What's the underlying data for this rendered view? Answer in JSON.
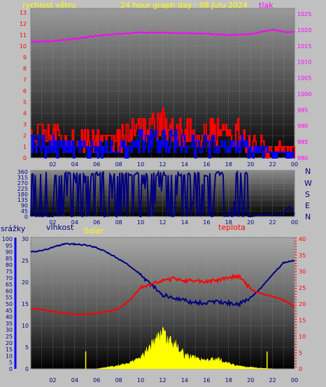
{
  "header": {
    "left_label": "rychlost větru",
    "title": "24 hour graph day : 08 Julu 2024",
    "right_label": "tlak"
  },
  "compass": [
    "N",
    "W",
    "S",
    "E",
    "N"
  ],
  "bottom_labels": {
    "rain": "srážky",
    "humidity": "vlhkost",
    "solar": "Solar",
    "temperature": "teplota"
  },
  "colors": {
    "wind_gust": "#ff0000",
    "wind_avg": "#0000ff",
    "pressure": "#ff00ff",
    "direction": "#000080",
    "humidity": "#000080",
    "temperature": "#ff0000",
    "solar": "#ffff00",
    "title": "#ffff00",
    "rain_axis": "#0000ff",
    "temp_axis": "#ff0000"
  },
  "chart_data": [
    {
      "type": "line",
      "name": "wind-pressure",
      "x_ticks": [
        "02",
        "04",
        "06",
        "08",
        "10",
        "12",
        "14",
        "16",
        "18",
        "20",
        "22",
        "00"
      ],
      "y_left_ticks": [
        0,
        1,
        2,
        3,
        4,
        5,
        6,
        7,
        8,
        9,
        10,
        11,
        12,
        13
      ],
      "y_left_range": [
        0,
        13
      ],
      "y_right_ticks": [
        980,
        985,
        990,
        995,
        1000,
        1005,
        1010,
        1015,
        1020,
        1025
      ],
      "y_right_range": [
        980,
        1025
      ],
      "series": [
        {
          "name": "tlak",
          "x": [
            0,
            2,
            4,
            6,
            8,
            10,
            12,
            14,
            16,
            18,
            20,
            21,
            22,
            23,
            24
          ],
          "y": [
            1016.3,
            1016.5,
            1017.2,
            1018.2,
            1018.8,
            1019.2,
            1019.1,
            1019.0,
            1018.8,
            1018.4,
            1018.7,
            1019.4,
            1020.0,
            1019.5,
            1019.3
          ]
        },
        {
          "x": [
            0,
            1,
            2,
            3,
            4,
            5,
            6,
            7,
            8,
            9,
            10,
            11,
            12,
            13,
            14,
            15,
            16,
            17,
            18,
            19,
            20,
            21,
            22,
            23,
            24
          ],
          "y_low": [
            1.2,
            1.0,
            0.7,
            0.8,
            0.5,
            0.3,
            0.6,
            0.8,
            0.4,
            0.5,
            1.3,
            1.4,
            1.6,
            0.9,
            1.0,
            0.8,
            0.8,
            0.6,
            1.0,
            0.7,
            0.5,
            0.2,
            0.0,
            0.0,
            0.0
          ],
          "y_high": [
            3.5,
            3.3,
            3.2,
            2.6,
            2.9,
            2.8,
            2.5,
            2.4,
            3.0,
            3.3,
            3.5,
            4.0,
            4.5,
            3.9,
            3.7,
            3.2,
            3.3,
            3.6,
            3.2,
            3.6,
            2.0,
            2.5,
            1.1,
            1.4,
            1.3
          ]
        },
        {
          "x": [
            0,
            1,
            2,
            3,
            4,
            5,
            6,
            7,
            8,
            9,
            10,
            11,
            12,
            13,
            14,
            15,
            16,
            17,
            18,
            19,
            20,
            21,
            22,
            23,
            24
          ],
          "y_low": [
            0.3,
            0.2,
            0.1,
            0.1,
            0.1,
            0.0,
            0.0,
            0.2,
            0.1,
            0.1,
            0.3,
            0.4,
            0.5,
            0.3,
            0.3,
            0.2,
            0.2,
            0.1,
            0.3,
            0.2,
            0.1,
            0.0,
            0.0,
            0.0,
            0.0
          ],
          "y_high": [
            2.2,
            1.9,
            1.8,
            1.6,
            1.7,
            1.6,
            1.4,
            1.5,
            1.8,
            2.0,
            2.4,
            2.6,
            2.9,
            2.5,
            2.4,
            2.0,
            2.1,
            2.3,
            2.0,
            2.2,
            1.2,
            1.5,
            0.6,
            0.7,
            0.6
          ]
        }
      ]
    },
    {
      "type": "line",
      "name": "wind-direction",
      "x_ticks": [
        "02",
        "04",
        "06",
        "08",
        "10",
        "12",
        "14",
        "16",
        "18",
        "20",
        "22",
        "00"
      ],
      "y_ticks": [
        0,
        45,
        90,
        135,
        180,
        225,
        270,
        315,
        360
      ],
      "y_range": [
        0,
        360
      ],
      "activity_x": [
        0,
        19.9,
        24
      ],
      "activity": [
        1,
        1,
        0
      ],
      "settled_x": [
        20,
        21,
        22,
        23,
        23.5,
        24
      ],
      "settled_y": [
        0,
        15,
        20,
        20,
        80,
        20
      ]
    },
    {
      "type": "line",
      "name": "temp-humidity-solar",
      "x_ticks": [
        "02",
        "04",
        "06",
        "08",
        "10",
        "12",
        "14",
        "16",
        "18",
        "20",
        "22",
        "00"
      ],
      "rain_ticks": [
        0,
        5,
        10,
        15,
        20,
        25,
        30,
        35,
        40,
        45,
        50,
        55,
        60,
        65,
        70,
        75,
        80,
        85,
        90,
        95,
        100
      ],
      "humidity_ticks": [
        0,
        5,
        10,
        15,
        20,
        25,
        30
      ],
      "humidity_range": [
        0,
        30
      ],
      "temp_ticks": [
        0,
        5,
        10,
        15,
        20,
        25,
        30,
        35,
        40
      ],
      "temp_range": [
        0,
        40
      ],
      "series": [
        {
          "x": [
            0,
            1,
            2,
            3,
            4,
            5,
            6,
            7,
            8,
            9,
            10,
            11,
            12,
            13,
            14,
            15,
            16,
            17,
            18,
            19,
            20,
            21,
            22,
            23,
            24
          ],
          "y": [
            27.0,
            27.3,
            28.0,
            28.8,
            28.8,
            28.6,
            28.0,
            26.8,
            25.3,
            23.8,
            21.8,
            19.3,
            17.0,
            16.3,
            15.7,
            15.3,
            15.1,
            15.5,
            15.2,
            15.0,
            16.5,
            18.8,
            21.8,
            24.5,
            25.0
          ]
        },
        {
          "x": [
            0,
            1,
            2,
            3,
            4,
            5,
            6,
            7,
            8,
            9,
            10,
            11,
            12,
            13,
            14,
            15,
            16,
            17,
            18,
            19,
            20,
            21,
            22,
            23,
            24
          ],
          "y": [
            18.5,
            18.3,
            17.6,
            17.0,
            16.8,
            16.8,
            17.0,
            17.6,
            18.6,
            21.0,
            25.0,
            26.0,
            27.0,
            27.8,
            27.2,
            27.0,
            27.0,
            27.2,
            28.2,
            28.3,
            24.5,
            23.2,
            22.2,
            21.2,
            19.2
          ]
        },
        {
          "x": [
            6,
            7,
            8,
            9,
            10,
            11,
            12,
            13,
            14,
            15,
            16,
            17,
            18,
            19,
            20,
            21,
            22
          ],
          "y": [
            0.0,
            0.5,
            1.0,
            1.8,
            3.2,
            7.0,
            10.0,
            7.5,
            4.0,
            3.2,
            2.4,
            3.0,
            1.6,
            0.8,
            0.5,
            0.2,
            0.0
          ]
        }
      ],
      "spikes_x": [
        5.0,
        21.5
      ],
      "spikes_y": [
        4.0,
        4.0
      ]
    }
  ]
}
